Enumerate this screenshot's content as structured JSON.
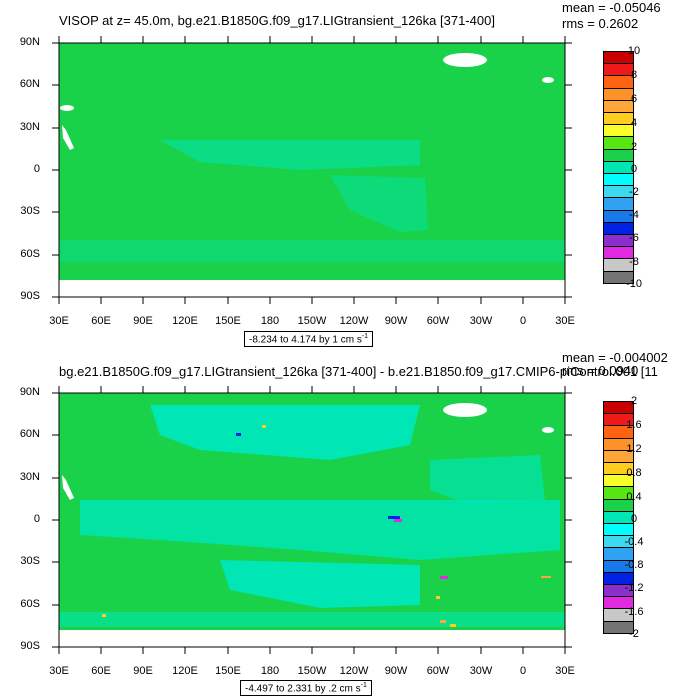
{
  "panels": [
    {
      "title": "VISOP at z=  45.0m, bg.e21.B1850G.f09_g17.LIGtransient_126ka [371-400]",
      "mean": "mean = -0.05046",
      "rms": "rms = 0.2602",
      "range_label": "-8.234 to 4.174 by 1 cm s",
      "range_sup": "-1",
      "colorbar": {
        "labels": [
          "10",
          "8",
          "6",
          "4",
          "2",
          "0",
          "-2",
          "-4",
          "-6",
          "-8",
          "-10"
        ],
        "colors": [
          "#c80000",
          "#ee1a1a",
          "#fe6213",
          "#fe9127",
          "#fea63a",
          "#fecd1e",
          "#f8fe29",
          "#56e612",
          "#19d249",
          "#00e6b4",
          "#00fefe",
          "#3cd9f0",
          "#2fa3f2",
          "#177ae8",
          "#0022e6",
          "#8a2ecc",
          "#e029e0",
          "#c8c8c8",
          "#747474"
        ]
      },
      "field_colors": {
        "ocean": "#19d249",
        "ocean_alt": "#00e6b4",
        "land": "#ffffff"
      }
    },
    {
      "title": "bg.e21.B1850G.f09_g17.LIGtransient_126ka [371-400] - b.e21.B1850.f09_g17.CMIP6-piControl.001 [11",
      "mean": "mean = -0.004002",
      "rms": "rms = 0.0940",
      "range_label": "-4.497 to 2.331 by .2 cm s",
      "range_sup": "-1",
      "colorbar": {
        "labels": [
          "2",
          "1.6",
          "1.2",
          "0.8",
          "0.4",
          "0",
          "-0.4",
          "-0.8",
          "-1.2",
          "-1.6",
          "-2"
        ],
        "colors": [
          "#c80000",
          "#ee1a1a",
          "#fe6213",
          "#fe9127",
          "#fea63a",
          "#fecd1e",
          "#f8fe29",
          "#56e612",
          "#19d249",
          "#00e6b4",
          "#00fefe",
          "#3cd9f0",
          "#2fa3f2",
          "#177ae8",
          "#0022e6",
          "#8a2ecc",
          "#e029e0",
          "#c8c8c8",
          "#747474"
        ]
      },
      "field_colors": {
        "ocean": "#19d249",
        "ocean_alt": "#00e6b4",
        "land": "#ffffff"
      }
    }
  ],
  "lat_labels": [
    "90N",
    "60N",
    "30N",
    "0",
    "30S",
    "60S",
    "90S"
  ],
  "lon_labels": [
    "30E",
    "60E",
    "90E",
    "120E",
    "150E",
    "180",
    "150W",
    "120W",
    "90W",
    "60W",
    "30W",
    "0",
    "30E"
  ]
}
